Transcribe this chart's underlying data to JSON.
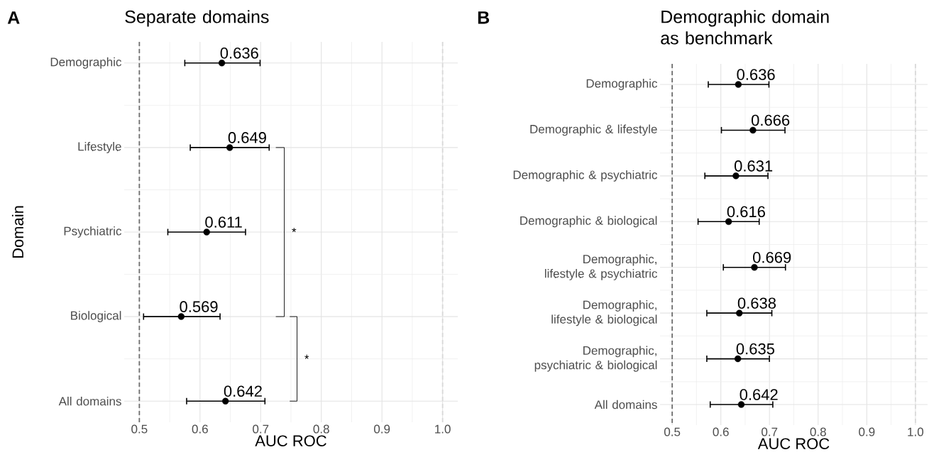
{
  "chart_data": [
    {
      "type": "scatter",
      "orientation": "horizontal",
      "title": "Separate domains",
      "xlabel": "AUC ROC",
      "ylabel": "Domain",
      "categories": [
        "Demographic",
        "Lifestyle",
        "Psychiatric",
        "Biological",
        "All domains"
      ],
      "values": [
        0.636,
        0.649,
        0.611,
        0.569,
        0.642
      ],
      "errors": [
        [
          0.574,
          0.7
        ],
        [
          0.583,
          0.715
        ],
        [
          0.546,
          0.676
        ],
        [
          0.506,
          0.634
        ],
        [
          0.577,
          0.708
        ]
      ],
      "color": "#000000",
      "marker": "circle",
      "data_labels": true,
      "grid": true,
      "xlim": [
        0.475,
        1.025
      ],
      "xticks": [
        0.5,
        0.6,
        0.7,
        0.8,
        0.9,
        {
          "value": 1.0,
          "label": "1.0"
        }
      ],
      "ref_lines": [
        {
          "axis": "x",
          "value": 0.5,
          "color": "#6e6e6e",
          "line_style": "dashed"
        },
        {
          "axis": "x",
          "value": 1.0,
          "color": "#d9d9d9",
          "line_style": "dashed"
        }
      ],
      "annotations": [
        "A",
        "*",
        "*"
      ]
    },
    {
      "type": "scatter",
      "orientation": "horizontal",
      "title": "Demographic domain as benchmark",
      "xlabel": "AUC ROC",
      "categories": [
        "Demographic",
        "Demographic & lifestyle",
        "Demographic & psychiatric",
        "Demographic & biological",
        "Demographic, lifestyle & psychiatric",
        "Demographic, lifestyle & biological",
        "Demographic, psychiatric & biological",
        "All domains"
      ],
      "values": [
        0.636,
        0.666,
        0.631,
        0.616,
        0.669,
        0.638,
        0.635,
        0.642
      ],
      "errors": [
        [
          0.573,
          0.7
        ],
        [
          0.6,
          0.733
        ],
        [
          0.566,
          0.698
        ],
        [
          0.552,
          0.68
        ],
        [
          0.604,
          0.734
        ],
        [
          0.57,
          0.706
        ],
        [
          0.57,
          0.701
        ],
        [
          0.577,
          0.708
        ]
      ],
      "color": "#000000",
      "marker": "circle",
      "data_labels": true,
      "grid": true,
      "xlim": [
        0.475,
        1.025
      ],
      "xticks": [
        0.5,
        0.6,
        0.7,
        0.8,
        0.9,
        {
          "value": 1.0,
          "label": "1.0"
        }
      ],
      "ref_lines": [
        {
          "axis": "x",
          "value": 0.5,
          "color": "#6e6e6e",
          "line_style": "dashed"
        },
        {
          "axis": "x",
          "value": 1.0,
          "color": "#d9d9d9",
          "line_style": "dashed"
        }
      ],
      "annotations": [
        "B"
      ]
    }
  ]
}
